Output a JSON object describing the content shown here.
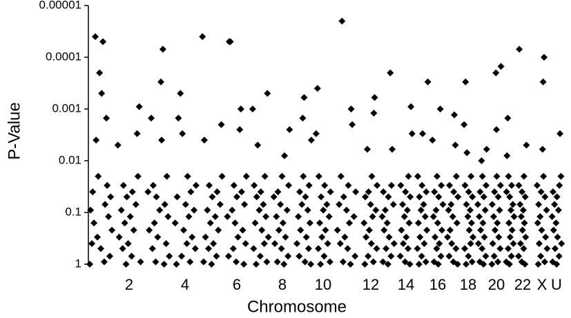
{
  "chart_data": {
    "type": "scatter",
    "ylabel": "P-Value",
    "xlabel": "Chromosome",
    "color": "#000000",
    "log_y": true,
    "ylim": [
      1,
      1e-05
    ],
    "yticks": [
      1,
      0.1,
      0.01,
      0.001,
      0.0001,
      1e-05
    ],
    "categories": [
      null,
      "2",
      null,
      "4",
      null,
      "6",
      null,
      "8",
      null,
      "10",
      null,
      "12",
      null,
      "14",
      null,
      "16",
      null,
      "18",
      null,
      "20",
      null,
      "22",
      "X",
      "U"
    ],
    "values": [
      [
        1,
        0.9,
        4e-05,
        0.7,
        0.5,
        0.4,
        0.0015,
        0.3,
        0.22,
        5e-05,
        0.16,
        0.12,
        0.0002,
        0.09,
        0.07,
        0.004,
        0.05,
        0.0005,
        0.04,
        0.03,
        0.02
      ],
      [
        1,
        0.9,
        0.7,
        0.5,
        0.003,
        0.4,
        0.3,
        0.22,
        0.16,
        0.0009,
        0.12,
        0.09,
        0.07,
        0.05,
        0.005,
        0.04,
        0.03,
        0.02
      ],
      [
        1,
        0.9,
        0.7,
        0.0003,
        0.5,
        0.4,
        0.3,
        0.22,
        7e-05,
        0.16,
        0.12,
        0.09,
        0.0015,
        0.07,
        0.05,
        0.04,
        0.004,
        0.03,
        0.02
      ],
      [
        1,
        0.9,
        0.7,
        0.5,
        0.4,
        0.0015,
        0.3,
        0.22,
        0.16,
        0.12,
        0.0005,
        0.09,
        0.07,
        0.05,
        0.04,
        0.003,
        0.03,
        0.02
      ],
      [
        1,
        0.9,
        0.7,
        0.5,
        0.002,
        0.4,
        0.3,
        0.22,
        0.16,
        4e-05,
        0.12,
        0.09,
        0.07,
        0.05,
        0.004,
        0.04,
        0.03,
        0.02
      ],
      [
        1,
        0.9,
        0.7,
        0.001,
        0.5,
        0.4,
        0.3,
        5e-05,
        0.22,
        0.16,
        0.12,
        0.0025,
        0.09,
        0.07,
        0.05,
        5e-05,
        0.04,
        0.03,
        0.02
      ],
      [
        1,
        0.9,
        0.7,
        0.5,
        0.4,
        0.005,
        0.3,
        0.22,
        0.16,
        0.12,
        0.09,
        0.001,
        0.07,
        0.05,
        0.0005,
        0.04,
        0.03,
        0.02
      ],
      [
        1,
        0.9,
        0.7,
        0.5,
        0.4,
        0.3,
        0.22,
        0.0025,
        0.16,
        0.12,
        0.09,
        0.07,
        0.05,
        0.008,
        0.04,
        0.03,
        0.02
      ],
      [
        1,
        0.9,
        0.7,
        0.5,
        0.0015,
        0.4,
        0.3,
        0.22,
        0.16,
        0.0006,
        0.12,
        0.09,
        0.07,
        0.004,
        0.05,
        0.04,
        0.03,
        0.02
      ],
      [
        1,
        0.9,
        0.7,
        0.5,
        0.4,
        0.3,
        0.003,
        0.22,
        0.16,
        0.12,
        0.09,
        0.0004,
        0.07,
        0.05,
        0.04,
        0.03,
        0.02
      ],
      [
        1,
        0.9,
        0.7,
        0.5,
        0.4,
        0.002,
        0.3,
        0.22,
        0.16,
        2e-05,
        0.12,
        0.09,
        0.07,
        0.001,
        0.05,
        0.04,
        0.03,
        0.02
      ],
      [
        1,
        0.9,
        0.7,
        0.5,
        0.4,
        0.3,
        0.0006,
        0.22,
        0.16,
        0.12,
        0.006,
        0.09,
        0.07,
        0.05,
        0.0012,
        0.04,
        0.03,
        0.02
      ],
      [
        1,
        0.9,
        0.7,
        0.5,
        0.4,
        0.3,
        0.22,
        0.006,
        0.16,
        0.12,
        0.0002,
        0.09,
        0.07,
        0.05,
        0.04,
        0.03
      ],
      [
        1,
        0.9,
        0.7,
        0.5,
        0.4,
        0.0009,
        0.3,
        0.22,
        0.16,
        0.12,
        0.003,
        0.09,
        0.07,
        0.05,
        0.04,
        0.03,
        0.02
      ],
      [
        1,
        0.9,
        0.7,
        0.5,
        0.4,
        0.3,
        0.22,
        0.003,
        0.16,
        0.12,
        0.09,
        0.0003,
        0.07,
        0.05,
        0.04,
        0.03,
        0.02
      ],
      [
        1,
        0.9,
        0.7,
        0.5,
        0.004,
        0.4,
        0.3,
        0.22,
        0.16,
        0.12,
        0.001,
        0.09,
        0.07,
        0.05,
        0.04,
        0.03,
        0.02
      ],
      [
        1,
        0.9,
        0.7,
        0.5,
        0.4,
        0.3,
        0.0013,
        0.22,
        0.16,
        0.12,
        0.09,
        0.005,
        0.07,
        0.05,
        0.04,
        0.03,
        0.02
      ],
      [
        1,
        0.9,
        0.7,
        0.5,
        0.4,
        0.007,
        0.3,
        0.22,
        0.0003,
        0.16,
        0.12,
        0.002,
        0.09,
        0.07,
        0.05,
        0.04,
        0.03,
        0.02
      ],
      [
        1,
        0.9,
        0.7,
        0.5,
        0.4,
        0.3,
        0.22,
        0.006,
        0.16,
        0.12,
        0.09,
        0.01,
        0.07,
        0.05,
        0.04,
        0.03,
        0.02
      ],
      [
        1,
        0.9,
        0.7,
        0.5,
        0.0025,
        0.4,
        0.3,
        0.22,
        0.00015,
        0.16,
        0.12,
        0.09,
        0.0002,
        0.07,
        0.05,
        0.04,
        0.03,
        0.02
      ],
      [
        1,
        0.9,
        0.7,
        0.5,
        0.4,
        0.3,
        0.008,
        0.22,
        0.16,
        0.12,
        0.09,
        0.0015,
        0.07,
        0.05,
        0.04,
        0.03,
        0.02
      ],
      [
        1,
        0.9,
        0.7,
        0.5,
        0.4,
        0.3,
        0.22,
        7e-05,
        0.16,
        0.12,
        0.005,
        0.09,
        0.07,
        0.05,
        0.04,
        0.03,
        0.02
      ],
      [
        1,
        0.9,
        0.7,
        0.5,
        0.0003,
        0.4,
        0.3,
        0.22,
        0.16,
        0.0001,
        0.12,
        0.09,
        0.006,
        0.07,
        0.05,
        0.04,
        0.03,
        0.02
      ],
      [
        1,
        0.9,
        0.7,
        0.5,
        0.4,
        0.3,
        0.22,
        0.003,
        0.16,
        0.12,
        0.09,
        0.07,
        0.02,
        0.05,
        0.04,
        0.03
      ]
    ]
  }
}
